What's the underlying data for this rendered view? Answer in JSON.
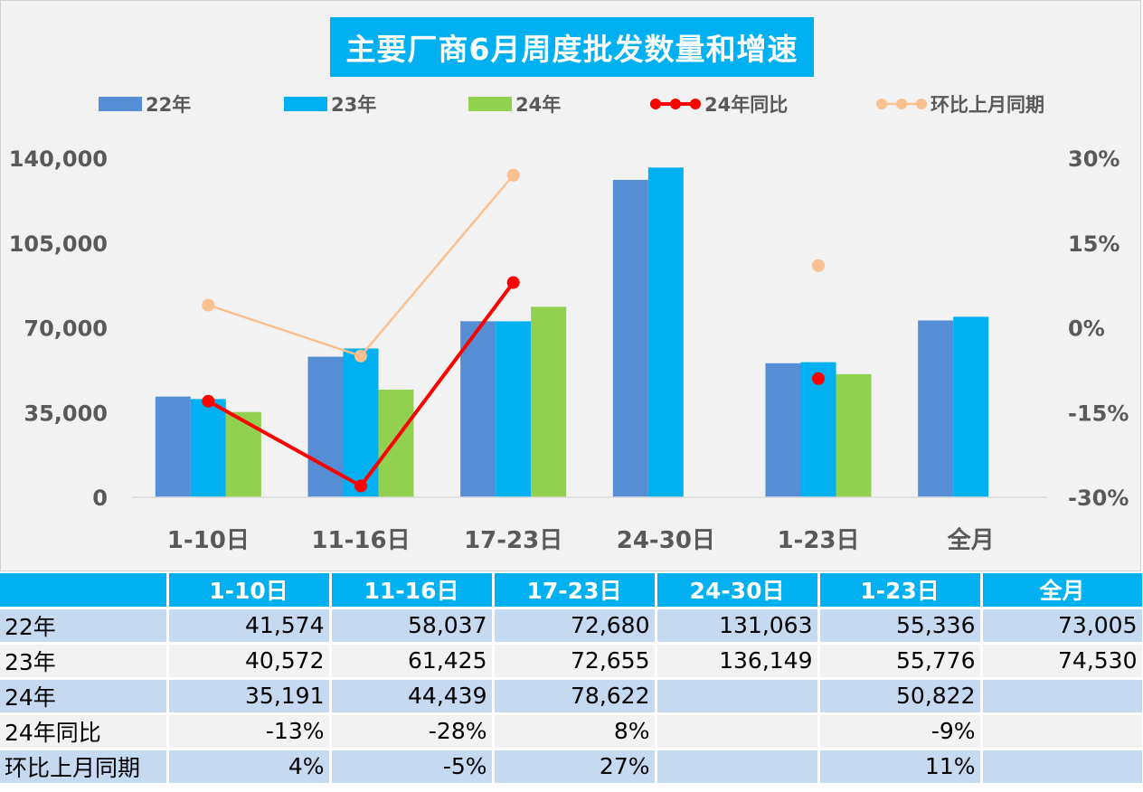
{
  "chart_data": {
    "type": "bar",
    "title": "主要厂商6月周度批发数量和增速",
    "categories": [
      "1-10日",
      "11-16日",
      "17-23日",
      "24-30日",
      "1-23日",
      "全月"
    ],
    "series": [
      {
        "name": "22年",
        "kind": "bar",
        "axis": "left",
        "color": "#558ed5",
        "values": [
          41574,
          58037,
          72680,
          131063,
          55336,
          73005
        ]
      },
      {
        "name": "23年",
        "kind": "bar",
        "axis": "left",
        "color": "#00b0f0",
        "values": [
          40572,
          61425,
          72655,
          136149,
          55776,
          74530
        ]
      },
      {
        "name": "24年",
        "kind": "bar",
        "axis": "left",
        "color": "#92d050",
        "values": [
          35191,
          44439,
          78622,
          null,
          50822,
          null
        ]
      },
      {
        "name": "24年同比",
        "kind": "line",
        "axis": "right",
        "color": "#ff0000",
        "values": [
          -13,
          -28,
          8,
          null,
          -9,
          null
        ]
      },
      {
        "name": "环比上月同期",
        "kind": "line",
        "axis": "right",
        "color": "#fac090",
        "values": [
          4,
          -5,
          27,
          null,
          11,
          null
        ]
      }
    ],
    "left_axis": {
      "ylim": [
        0,
        140000
      ],
      "ticks": [
        "0",
        "35,000",
        "70,000",
        "105,000",
        "140,000"
      ]
    },
    "right_axis": {
      "ylim": [
        -30,
        30
      ],
      "unit": "%",
      "ticks": [
        "-30%",
        "-15%",
        "0%",
        "15%",
        "30%"
      ]
    },
    "legend_position": "top",
    "grid": false
  },
  "table": {
    "headers": [
      "",
      "1-10日",
      "11-16日",
      "17-23日",
      "24-30日",
      "1-23日",
      "全月"
    ],
    "rows": [
      {
        "label": "22年",
        "cells": [
          "41,574",
          "58,037",
          "72,680",
          "131,063",
          "55,336",
          "73,005"
        ]
      },
      {
        "label": "23年",
        "cells": [
          "40,572",
          "61,425",
          "72,655",
          "136,149",
          "55,776",
          "74,530"
        ]
      },
      {
        "label": "24年",
        "cells": [
          "35,191",
          "44,439",
          "78,622",
          "",
          "50,822",
          ""
        ]
      },
      {
        "label": "24年同比",
        "cells": [
          "-13%",
          "-28%",
          "8%",
          "",
          "-9%",
          ""
        ]
      },
      {
        "label": "环比上月同期",
        "cells": [
          "4%",
          "-5%",
          "27%",
          "",
          "11%",
          ""
        ]
      }
    ]
  }
}
